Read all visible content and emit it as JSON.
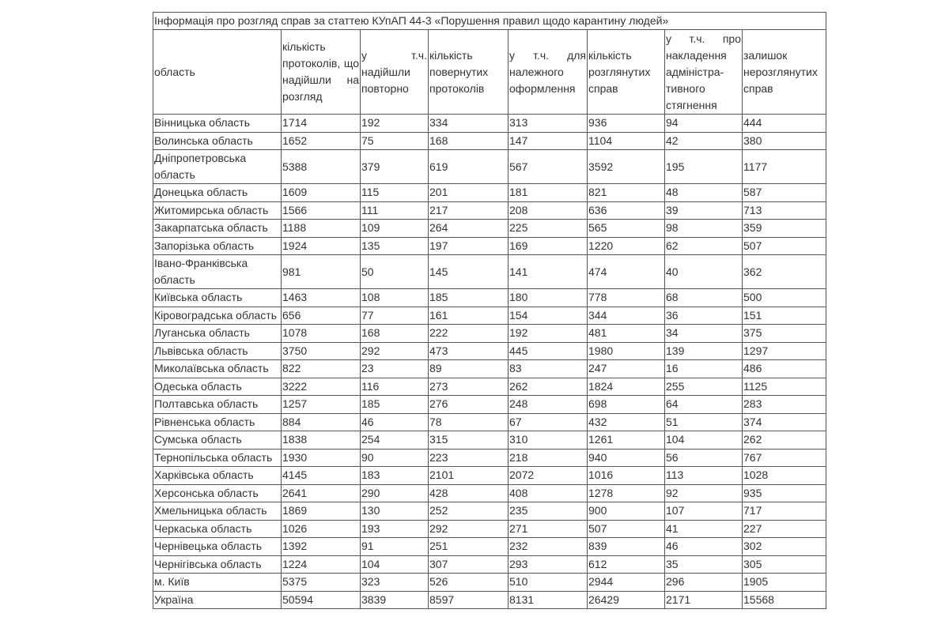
{
  "table": {
    "title": "Інформація про розгляд справ за статтею КУпАП 44-3 «Порушення правил щодо карантину людей»",
    "headers": [
      "область",
      "кількість протоколів, що надійшли на розгляд",
      "у т.ч. надійшли повторно",
      "кількість повернутих протоколів",
      "у т.ч. для належного оформлення",
      "кількість розглянутих справ",
      "у т.ч. про накладення адміністра-тивного стягнення",
      "залишок нерозглянутих справ"
    ],
    "rows": [
      [
        "Вінницька область",
        1714,
        192,
        334,
        313,
        936,
        94,
        444
      ],
      [
        "Волинська область",
        1652,
        75,
        168,
        147,
        1104,
        42,
        380
      ],
      [
        "Дніпропетровська область",
        5388,
        379,
        619,
        567,
        3592,
        195,
        1177
      ],
      [
        "Донецька область",
        1609,
        115,
        201,
        181,
        821,
        48,
        587
      ],
      [
        "Житомирська область",
        1566,
        111,
        217,
        208,
        636,
        39,
        713
      ],
      [
        "Закарпатська область",
        1188,
        109,
        264,
        225,
        565,
        98,
        359
      ],
      [
        "Запорізька область",
        1924,
        135,
        197,
        169,
        1220,
        62,
        507
      ],
      [
        "Івано-Франківська область",
        981,
        50,
        145,
        141,
        474,
        40,
        362
      ],
      [
        "Київська область",
        1463,
        108,
        185,
        180,
        778,
        68,
        500
      ],
      [
        "Кіровоградська область",
        656,
        77,
        161,
        154,
        344,
        36,
        151
      ],
      [
        "Луганська область",
        1078,
        168,
        222,
        192,
        481,
        34,
        375
      ],
      [
        "Львівська область",
        3750,
        292,
        473,
        445,
        1980,
        139,
        1297
      ],
      [
        "Миколаївська область",
        822,
        23,
        89,
        83,
        247,
        16,
        486
      ],
      [
        "Одеська область",
        3222,
        116,
        273,
        262,
        1824,
        255,
        1125
      ],
      [
        "Полтавська область",
        1257,
        185,
        276,
        248,
        698,
        64,
        283
      ],
      [
        "Рівненська область",
        884,
        46,
        78,
        67,
        432,
        51,
        374
      ],
      [
        "Сумська область",
        1838,
        254,
        315,
        310,
        1261,
        104,
        262
      ],
      [
        "Тернопільська область",
        1930,
        90,
        223,
        218,
        940,
        56,
        767
      ],
      [
        "Харківська область",
        4145,
        183,
        2101,
        2072,
        1016,
        113,
        1028
      ],
      [
        "Херсонська область",
        2641,
        290,
        428,
        408,
        1278,
        92,
        935
      ],
      [
        "Хмельницька область",
        1869,
        130,
        252,
        235,
        900,
        107,
        717
      ],
      [
        "Черкаська область",
        1026,
        193,
        292,
        271,
        507,
        41,
        227
      ],
      [
        "Чернівецька область",
        1392,
        91,
        251,
        232,
        839,
        46,
        302
      ],
      [
        "Чернігівська область",
        1224,
        104,
        307,
        293,
        612,
        35,
        305
      ],
      [
        "м. Київ",
        5375,
        323,
        526,
        510,
        2944,
        296,
        1905
      ],
      [
        "Україна",
        50594,
        3839,
        8597,
        8131,
        26429,
        2171,
        15568
      ]
    ]
  }
}
